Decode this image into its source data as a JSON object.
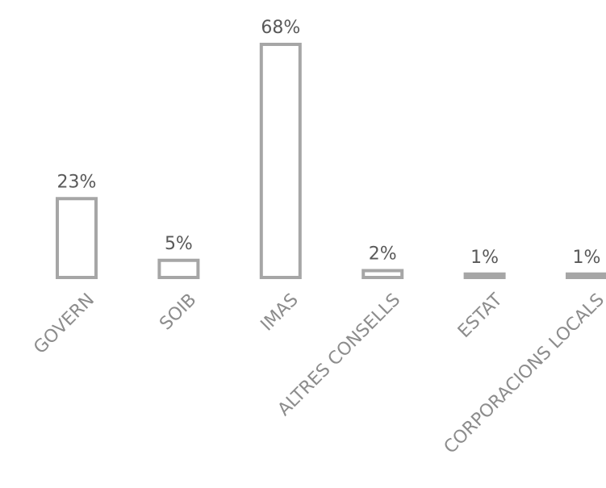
{
  "chart_data": {
    "type": "bar",
    "title": "",
    "xlabel": "",
    "ylabel": "",
    "ylim": [
      0,
      68
    ],
    "grid": false,
    "categories": [
      "GOVERN",
      "SOIB",
      "IMAS",
      "ALTRES CONSELLS",
      "ESTAT",
      "CORPORACIONS LOCALS"
    ],
    "values": [
      23,
      5,
      68,
      2,
      1,
      1
    ],
    "value_labels": [
      "23%",
      "5%",
      "68%",
      "2%",
      "1%",
      "1%"
    ],
    "colors": {
      "bar_stroke": "#a6a6a6",
      "bar_fill": "#ffffff",
      "value_text": "#595959",
      "category_text": "#8c8c8c"
    }
  }
}
